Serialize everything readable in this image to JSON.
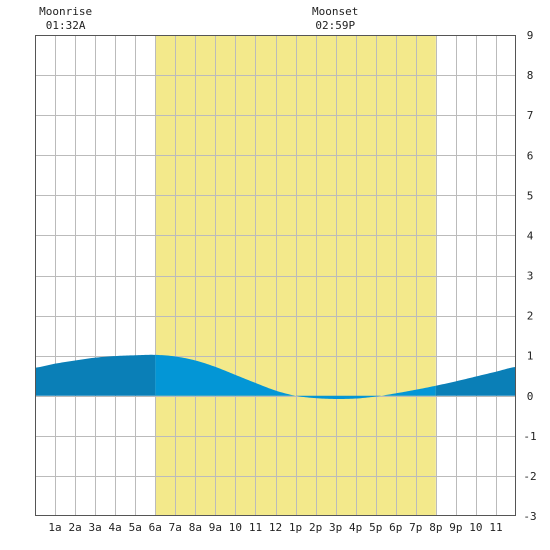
{
  "chart_data": {
    "type": "area",
    "title": "",
    "xlabel": "",
    "ylabel": "",
    "x_range": [
      0,
      24
    ],
    "ylim": [
      -3,
      9
    ],
    "x_tick_labels": [
      "1a",
      "2a",
      "3a",
      "4a",
      "5a",
      "6a",
      "7a",
      "8a",
      "9a",
      "10",
      "11",
      "12",
      "1p",
      "2p",
      "3p",
      "4p",
      "5p",
      "6p",
      "7p",
      "8p",
      "9p",
      "10",
      "11"
    ],
    "y_tick_labels": [
      "9",
      "8",
      "7",
      "6",
      "5",
      "4",
      "3",
      "2",
      "1",
      "0",
      "-1",
      "-2",
      "-3"
    ],
    "daylight": {
      "start_hour": 6.0,
      "end_hour": 20.0
    },
    "moon_events": [
      {
        "label": "Moonrise",
        "time": "01:32A",
        "hour": 1.53
      },
      {
        "label": "Moonset",
        "time": "02:59P",
        "hour": 14.98
      }
    ],
    "tide_extremes": [
      {
        "hour": 6.0,
        "height": 1.02
      },
      {
        "hour": 15.5,
        "height": -0.08
      }
    ],
    "series": [
      {
        "x": [
          0,
          1,
          2,
          3,
          4,
          5,
          6,
          7,
          8,
          9,
          10,
          11,
          12,
          13,
          14,
          15,
          16,
          17,
          18,
          19,
          20,
          21,
          22,
          23,
          24
        ],
        "values": [
          0.7,
          0.8,
          0.88,
          0.95,
          0.99,
          1.01,
          1.02,
          0.98,
          0.88,
          0.72,
          0.52,
          0.32,
          0.13,
          0.0,
          -0.06,
          -0.08,
          -0.07,
          -0.02,
          0.06,
          0.15,
          0.25,
          0.36,
          0.48,
          0.6,
          0.72
        ]
      }
    ],
    "grid": true,
    "colors": {
      "daylight": "#f3e98b",
      "tide_night": "#0a7fb7",
      "tide_day": "#0396d6",
      "grid": "#bbbbbb",
      "axis": "#555555",
      "background": "#ffffff"
    }
  }
}
